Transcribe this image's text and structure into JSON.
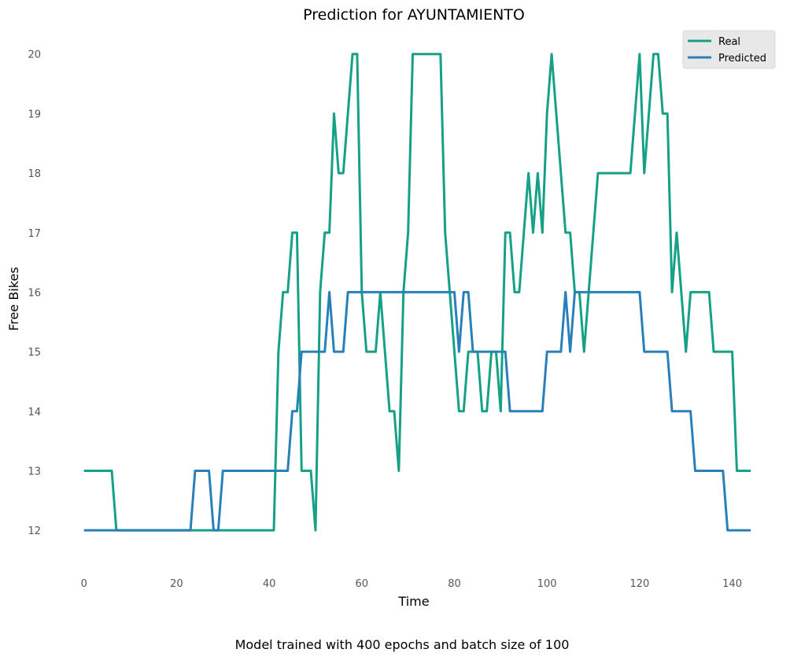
{
  "chart_data": {
    "type": "line",
    "title": "Prediction for AYUNTAMIENTO",
    "xlabel": "Time",
    "ylabel": "Free Bikes",
    "caption": "Model trained with 400 epochs and batch size of 100",
    "xlim": [
      -2.5,
      145
    ],
    "ylim": [
      11.5,
      20.3
    ],
    "xticks": [
      0,
      20,
      40,
      60,
      80,
      100,
      120,
      140
    ],
    "yticks": [
      12,
      13,
      14,
      15,
      16,
      17,
      18,
      19,
      20
    ],
    "grid": false,
    "legend_position": "top-right",
    "series": [
      {
        "name": "Real",
        "color": "#16a085",
        "values": [
          13,
          13,
          13,
          13,
          13,
          13,
          13,
          12,
          12,
          12,
          12,
          12,
          12,
          12,
          12,
          12,
          12,
          12,
          12,
          12,
          12,
          12,
          12,
          12,
          12,
          12,
          12,
          12,
          12,
          12,
          12,
          12,
          12,
          12,
          12,
          12,
          12,
          12,
          12,
          12,
          12,
          12,
          15,
          16,
          16,
          17,
          17,
          13,
          13,
          13,
          12,
          16,
          17,
          17,
          19,
          18,
          18,
          19,
          20,
          20,
          16,
          15,
          15,
          15,
          16,
          15,
          14,
          14,
          13,
          16,
          17,
          20,
          20,
          20,
          20,
          20,
          20,
          20,
          17,
          16,
          15,
          14,
          14,
          15,
          15,
          15,
          14,
          14,
          15,
          15,
          14,
          17,
          17,
          16,
          16,
          17,
          18,
          17,
          18,
          17,
          19,
          20,
          19,
          18,
          17,
          17,
          16,
          16,
          15,
          16,
          17,
          18,
          18,
          18,
          18,
          18,
          18,
          18,
          18,
          19,
          20,
          18,
          19,
          20,
          20,
          19,
          19,
          16,
          17,
          16,
          15,
          16,
          16,
          16,
          16,
          16,
          15,
          15,
          15,
          15,
          15,
          13,
          13,
          13,
          13
        ]
      },
      {
        "name": "Predicted",
        "color": "#2980b9",
        "values": [
          12,
          12,
          12,
          12,
          12,
          12,
          12,
          12,
          12,
          12,
          12,
          12,
          12,
          12,
          12,
          12,
          12,
          12,
          12,
          12,
          12,
          12,
          12,
          12,
          13,
          13,
          13,
          13,
          12,
          12,
          13,
          13,
          13,
          13,
          13,
          13,
          13,
          13,
          13,
          13,
          13,
          13,
          13,
          13,
          13,
          14,
          14,
          15,
          15,
          15,
          15,
          15,
          15,
          16,
          15,
          15,
          15,
          16,
          16,
          16,
          16,
          16,
          16,
          16,
          16,
          16,
          16,
          16,
          16,
          16,
          16,
          16,
          16,
          16,
          16,
          16,
          16,
          16,
          16,
          16,
          16,
          15,
          16,
          16,
          15,
          15,
          15,
          15,
          15,
          15,
          15,
          15,
          14,
          14,
          14,
          14,
          14,
          14,
          14,
          14,
          15,
          15,
          15,
          15,
          16,
          15,
          16,
          16,
          16,
          16,
          16,
          16,
          16,
          16,
          16,
          16,
          16,
          16,
          16,
          16,
          16,
          15,
          15,
          15,
          15,
          15,
          15,
          14,
          14,
          14,
          14,
          14,
          13,
          13,
          13,
          13,
          13,
          13,
          13,
          12,
          12,
          12,
          12,
          12,
          12
        ]
      }
    ]
  }
}
